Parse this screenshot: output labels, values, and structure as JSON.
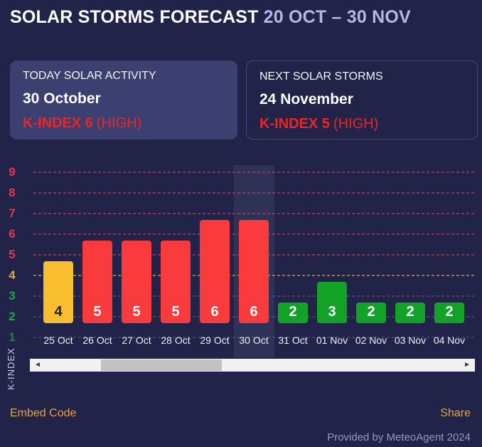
{
  "header": {
    "title": "SOLAR STORMS FORECAST",
    "date_range": "20 OCT – 30 NOV"
  },
  "cards": {
    "today": {
      "label": "TODAY SOLAR ACTIVITY",
      "date": "30 October",
      "kindex": "K-INDEX 6",
      "severity": "(HIGH)"
    },
    "next": {
      "label": "NEXT SOLAR STORMS",
      "date": "24 November",
      "kindex": "K-INDEX 5",
      "severity": "(HIGH)"
    }
  },
  "chart_data": {
    "type": "bar",
    "title": "",
    "xlabel": "",
    "ylabel": "K-INDEX",
    "categories": [
      "25 Oct",
      "26 Oct",
      "27 Oct",
      "28 Oct",
      "29 Oct",
      "30 Oct",
      "31 Oct",
      "01 Nov",
      "02 Nov",
      "03 Nov",
      "04 Nov"
    ],
    "values": [
      4,
      5,
      5,
      5,
      6,
      6,
      2,
      3,
      2,
      2,
      2
    ],
    "yticks": [
      1,
      2,
      3,
      4,
      5,
      6,
      7,
      8,
      9
    ],
    "ylim": [
      1,
      9
    ],
    "grid": true,
    "highlighted_category": "30 Oct",
    "highlighted_index": 5,
    "colors": {
      "high": "#f93b3d",
      "medium": "#f9bd30",
      "low": "#12a228"
    },
    "thresholds": {
      "high_min": 5,
      "medium_min": 4
    }
  },
  "scrollbar": {
    "left_arrow": "◄",
    "right_arrow": "►"
  },
  "footer": {
    "embed": "Embed Code",
    "share": "Share",
    "credit": "Provided by MeteoAgent 2024"
  }
}
